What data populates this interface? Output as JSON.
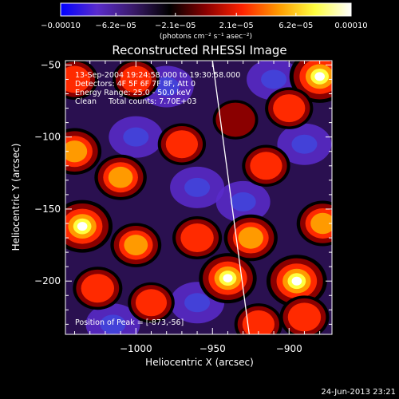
{
  "chart_data": {
    "type": "heatmap",
    "title": "Reconstructed RHESSI Image",
    "xlabel": "Heliocentric X (arcsec)",
    "ylabel": "Heliocentric Y (arcsec)",
    "xlim": [
      -1046,
      -872
    ],
    "ylim": [
      -237,
      -47
    ],
    "x_ticks": [
      -1000,
      -950,
      -900
    ],
    "x_tick_labels": [
      "−1000",
      "−950",
      "−900"
    ],
    "y_ticks": [
      -50,
      -100,
      -150,
      -200
    ],
    "y_tick_labels": [
      "−50",
      "−100",
      "−150",
      "−200"
    ],
    "colorbar": {
      "min": -0.0001,
      "max": 0.0001,
      "ticks": [
        -0.0001,
        -6.2e-05,
        -2.1e-05,
        2.1e-05,
        6.2e-05,
        0.0001
      ],
      "tick_labels": [
        "−0.00010",
        "−6.2e−05",
        "−2.1e−05",
        "2.1e−05",
        "6.2e−05",
        "0.00010"
      ],
      "units_label": "(photons cm⁻² s⁻¹ asec⁻²)",
      "colors": [
        "#0000ff",
        "#5a2ccc",
        "#3a1a6a",
        "#000000",
        "#8a0000",
        "#ff2200",
        "#ff9a00",
        "#ffff40",
        "#ffffff"
      ]
    },
    "annotations": [
      "13-Sep-2004 19:24:58.000 to 19:30:58.000",
      "Detectors: 4F 5F 6F 7F 8F, Att 0",
      "Energy Range: 25.0 - 50.0 keV",
      "Clean     Total counts: 7.70E+03"
    ],
    "peak_label": "Position of Peak = [-873,-56]",
    "limb_line": {
      "x": [
        -950,
        -926
      ],
      "y": [
        -47,
        -237
      ]
    },
    "hot_regions": [
      {
        "x": -1035,
        "y": -162,
        "v": 1.0
      },
      {
        "x": -1040,
        "y": -110,
        "v": 0.75
      },
      {
        "x": -1010,
        "y": -128,
        "v": 0.7
      },
      {
        "x": -970,
        "y": -105,
        "v": 0.55
      },
      {
        "x": -1025,
        "y": -205,
        "v": 0.6
      },
      {
        "x": -1000,
        "y": -175,
        "v": 0.65
      },
      {
        "x": -990,
        "y": -215,
        "v": 0.5
      },
      {
        "x": -940,
        "y": -198,
        "v": 0.9
      },
      {
        "x": -960,
        "y": -170,
        "v": 0.6
      },
      {
        "x": -925,
        "y": -170,
        "v": 0.75
      },
      {
        "x": -915,
        "y": -120,
        "v": 0.55
      },
      {
        "x": -895,
        "y": -200,
        "v": 1.0
      },
      {
        "x": -878,
        "y": -160,
        "v": 0.7
      },
      {
        "x": -890,
        "y": -225,
        "v": 0.6
      },
      {
        "x": -880,
        "y": -58,
        "v": 1.0
      },
      {
        "x": -900,
        "y": -80,
        "v": 0.55
      },
      {
        "x": -1000,
        "y": -60,
        "v": 0.5
      },
      {
        "x": -1040,
        "y": -60,
        "v": 0.5
      },
      {
        "x": -935,
        "y": -88,
        "v": 0.45
      },
      {
        "x": -920,
        "y": -230,
        "v": 0.55
      }
    ],
    "cold_regions": [
      {
        "x": -1000,
        "y": -100,
        "v": -0.55
      },
      {
        "x": -960,
        "y": -135,
        "v": -0.5
      },
      {
        "x": -1015,
        "y": -230,
        "v": -0.45
      },
      {
        "x": -960,
        "y": -215,
        "v": -0.4
      },
      {
        "x": -890,
        "y": -105,
        "v": -0.5
      },
      {
        "x": -930,
        "y": -145,
        "v": -0.45
      },
      {
        "x": -910,
        "y": -60,
        "v": -0.4
      },
      {
        "x": -980,
        "y": -65,
        "v": -0.45
      }
    ]
  },
  "footer": {
    "timestamp": "24-Jun-2013 23:21"
  }
}
